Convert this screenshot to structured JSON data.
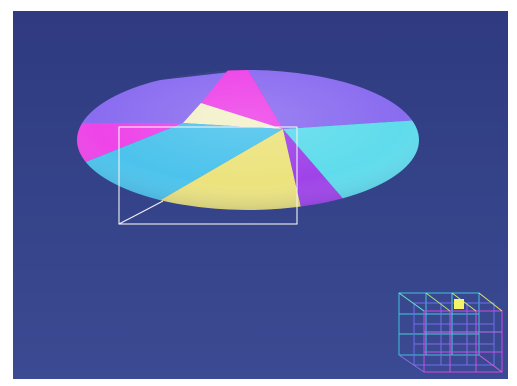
{
  "viewport": {
    "name": "3d-viewport",
    "background_colors": [
      "#2f3a80",
      "#3b4a92"
    ]
  },
  "pie": {
    "slice_colors": [
      "#8a6cf0",
      "#ee44e8",
      "#f3f1c9",
      "#4cc3ec",
      "#ece37e",
      "#9f43e9",
      "#5fdcec"
    ]
  },
  "selection_box": {
    "color": "#f2f2f2"
  },
  "nav_cube": {
    "icon": "navigation-cube-icon",
    "highlight_color": "#f2f56a"
  }
}
